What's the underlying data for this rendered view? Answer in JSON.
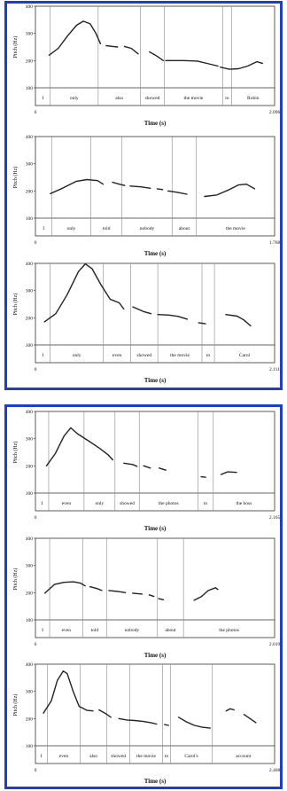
{
  "chart_data": [
    {
      "type": "line",
      "x_label": "Time (s)",
      "y_label": "Pitch (Hz)",
      "xlim": [
        0,
        2.096
      ],
      "ylim": [
        100,
        400
      ],
      "x_ticks": [
        "0",
        "2.096"
      ],
      "y_ticks": [
        "100",
        "200",
        "300",
        "400"
      ],
      "words": [
        {
          "label": "I",
          "start": 0.0,
          "end": 0.13
        },
        {
          "label": "only",
          "start": 0.13,
          "end": 0.55
        },
        {
          "label": "also",
          "start": 0.55,
          "end": 0.92
        },
        {
          "label": "showed",
          "start": 0.92,
          "end": 1.13
        },
        {
          "label": "the movie",
          "start": 1.13,
          "end": 1.64
        },
        {
          "label": "to",
          "start": 1.64,
          "end": 1.72
        },
        {
          "label": "Robin",
          "start": 1.72,
          "end": 2.096
        }
      ],
      "segments": [
        [
          [
            0.12,
            220
          ],
          [
            0.2,
            245
          ],
          [
            0.28,
            290
          ],
          [
            0.36,
            330
          ],
          [
            0.42,
            345
          ],
          [
            0.48,
            335
          ],
          [
            0.53,
            300
          ],
          [
            0.57,
            262
          ]
        ],
        [
          [
            0.62,
            255
          ],
          [
            0.68,
            252
          ],
          [
            0.72,
            250
          ]
        ],
        [
          [
            0.78,
            252
          ],
          [
            0.84,
            245
          ],
          [
            0.9,
            225
          ]
        ],
        [
          [
            1.0,
            232
          ],
          [
            1.07,
            215
          ],
          [
            1.12,
            200
          ]
        ],
        [
          [
            1.14,
            200
          ],
          [
            1.3,
            200
          ],
          [
            1.42,
            198
          ],
          [
            1.52,
            188
          ],
          [
            1.6,
            180
          ]
        ],
        [
          [
            1.62,
            176
          ],
          [
            1.7,
            168
          ],
          [
            1.78,
            170
          ],
          [
            1.86,
            180
          ],
          [
            1.94,
            196
          ],
          [
            1.99,
            190
          ]
        ]
      ]
    },
    {
      "type": "line",
      "x_label": "Time (s)",
      "y_label": "Pitch (Hz)",
      "xlim": [
        0,
        1.768
      ],
      "ylim": [
        100,
        400
      ],
      "x_ticks": [
        "0",
        "1.768"
      ],
      "y_ticks": [
        "100",
        "200",
        "300",
        "400"
      ],
      "words": [
        {
          "label": "I",
          "start": 0.0,
          "end": 0.12
        },
        {
          "label": "only",
          "start": 0.12,
          "end": 0.41
        },
        {
          "label": "told",
          "start": 0.41,
          "end": 0.64
        },
        {
          "label": "nobody",
          "start": 0.64,
          "end": 1.01
        },
        {
          "label": "about",
          "start": 1.01,
          "end": 1.19
        },
        {
          "label": "the movie",
          "start": 1.19,
          "end": 1.768
        }
      ],
      "segments": [
        [
          [
            0.11,
            190
          ],
          [
            0.2,
            210
          ],
          [
            0.3,
            235
          ],
          [
            0.38,
            242
          ],
          [
            0.46,
            238
          ],
          [
            0.5,
            225
          ]
        ],
        [
          [
            0.57,
            232
          ],
          [
            0.62,
            225
          ],
          [
            0.66,
            220
          ]
        ],
        [
          [
            0.7,
            218
          ],
          [
            0.78,
            215
          ],
          [
            0.85,
            210
          ]
        ],
        [
          [
            0.9,
            208
          ],
          [
            0.94,
            205
          ]
        ],
        [
          [
            0.98,
            200
          ],
          [
            1.05,
            195
          ],
          [
            1.12,
            188
          ]
        ],
        [
          [
            1.25,
            180
          ],
          [
            1.34,
            185
          ],
          [
            1.42,
            202
          ],
          [
            1.5,
            222
          ],
          [
            1.56,
            225
          ],
          [
            1.62,
            208
          ]
        ]
      ]
    },
    {
      "type": "line",
      "x_label": "Time (s)",
      "y_label": "Pitch (Hz)",
      "xlim": [
        0,
        2.111
      ],
      "ylim": [
        100,
        400
      ],
      "x_ticks": [
        "0",
        "2.111"
      ],
      "y_ticks": [
        "100",
        "200",
        "300",
        "400"
      ],
      "words": [
        {
          "label": "I",
          "start": 0.0,
          "end": 0.13
        },
        {
          "label": "only",
          "start": 0.13,
          "end": 0.6
        },
        {
          "label": "even",
          "start": 0.6,
          "end": 0.84
        },
        {
          "label": "showed",
          "start": 0.84,
          "end": 1.08
        },
        {
          "label": "the movie",
          "start": 1.08,
          "end": 1.47
        },
        {
          "label": "to",
          "start": 1.47,
          "end": 1.58
        },
        {
          "label": "Carol",
          "start": 1.58,
          "end": 2.111
        }
      ],
      "segments": [
        [
          [
            0.08,
            185
          ],
          [
            0.18,
            215
          ],
          [
            0.28,
            285
          ],
          [
            0.38,
            370
          ],
          [
            0.44,
            398
          ],
          [
            0.5,
            380
          ],
          [
            0.58,
            320
          ],
          [
            0.66,
            268
          ],
          [
            0.74,
            255
          ],
          [
            0.78,
            232
          ]
        ],
        [
          [
            0.86,
            240
          ],
          [
            0.96,
            222
          ],
          [
            1.02,
            215
          ]
        ],
        [
          [
            1.08,
            212
          ],
          [
            1.18,
            210
          ],
          [
            1.26,
            205
          ],
          [
            1.34,
            195
          ]
        ],
        [
          [
            1.44,
            182
          ],
          [
            1.5,
            178
          ]
        ],
        [
          [
            1.68,
            212
          ],
          [
            1.78,
            206
          ],
          [
            1.84,
            192
          ],
          [
            1.9,
            170
          ]
        ]
      ]
    },
    {
      "type": "line",
      "x_label": "Time (s)",
      "y_label": "Pitch (Hz)",
      "xlim": [
        0,
        2.165
      ],
      "ylim": [
        100,
        400
      ],
      "x_ticks": [
        "0",
        "2.165"
      ],
      "y_ticks": [
        "100",
        "200",
        "300",
        "400"
      ],
      "words": [
        {
          "label": "I",
          "start": 0.0,
          "end": 0.12
        },
        {
          "label": "even",
          "start": 0.12,
          "end": 0.44
        },
        {
          "label": "only",
          "start": 0.44,
          "end": 0.72
        },
        {
          "label": "showed",
          "start": 0.72,
          "end": 0.94
        },
        {
          "label": "the photos",
          "start": 0.94,
          "end": 1.47
        },
        {
          "label": "to",
          "start": 1.47,
          "end": 1.61
        },
        {
          "label": "the boss",
          "start": 1.61,
          "end": 2.165
        }
      ],
      "segments": [
        [
          [
            0.1,
            200
          ],
          [
            0.18,
            245
          ],
          [
            0.26,
            310
          ],
          [
            0.32,
            340
          ],
          [
            0.38,
            318
          ],
          [
            0.48,
            292
          ],
          [
            0.58,
            265
          ],
          [
            0.66,
            240
          ],
          [
            0.7,
            222
          ]
        ],
        [
          [
            0.8,
            210
          ],
          [
            0.88,
            205
          ],
          [
            0.92,
            198
          ]
        ],
        [
          [
            0.98,
            200
          ],
          [
            1.04,
            192
          ]
        ],
        [
          [
            1.12,
            192
          ],
          [
            1.18,
            184
          ]
        ],
        [
          [
            1.5,
            160
          ],
          [
            1.54,
            158
          ]
        ],
        [
          [
            1.68,
            168
          ],
          [
            1.74,
            178
          ],
          [
            1.82,
            176
          ]
        ]
      ]
    },
    {
      "type": "line",
      "x_label": "Time (s)",
      "y_label": "Pitch (Hz)",
      "xlim": [
        0,
        2.019
      ],
      "ylim": [
        100,
        400
      ],
      "x_ticks": [
        "0",
        "2.019"
      ],
      "y_ticks": [
        "100",
        "200",
        "300",
        "400"
      ],
      "words": [
        {
          "label": "I",
          "start": 0.0,
          "end": 0.12
        },
        {
          "label": "even",
          "start": 0.12,
          "end": 0.4
        },
        {
          "label": "told",
          "start": 0.4,
          "end": 0.6
        },
        {
          "label": "nobody",
          "start": 0.6,
          "end": 1.03
        },
        {
          "label": "about",
          "start": 1.03,
          "end": 1.25
        },
        {
          "label": "the photos",
          "start": 1.25,
          "end": 2.019
        }
      ],
      "segments": [
        [
          [
            0.08,
            198
          ],
          [
            0.16,
            230
          ],
          [
            0.24,
            238
          ],
          [
            0.32,
            240
          ],
          [
            0.38,
            235
          ],
          [
            0.42,
            225
          ]
        ],
        [
          [
            0.46,
            222
          ],
          [
            0.52,
            215
          ],
          [
            0.56,
            208
          ]
        ],
        [
          [
            0.62,
            208
          ],
          [
            0.7,
            204
          ],
          [
            0.76,
            200
          ]
        ],
        [
          [
            0.82,
            198
          ],
          [
            0.9,
            195
          ]
        ],
        [
          [
            0.96,
            192
          ],
          [
            1.0,
            186
          ]
        ],
        [
          [
            1.04,
            178
          ],
          [
            1.08,
            174
          ]
        ],
        [
          [
            1.34,
            172
          ],
          [
            1.4,
            185
          ],
          [
            1.46,
            208
          ],
          [
            1.52,
            218
          ],
          [
            1.54,
            212
          ]
        ]
      ]
    },
    {
      "type": "line",
      "x_label": "Time (s)",
      "y_label": "Pitch (Hz)",
      "xlim": [
        0,
        2.408
      ],
      "ylim": [
        100,
        400
      ],
      "x_ticks": [
        "0",
        "2.408"
      ],
      "y_ticks": [
        "100",
        "200",
        "300",
        "400"
      ],
      "words": [
        {
          "label": "I",
          "start": 0.0,
          "end": 0.12
        },
        {
          "label": "even",
          "start": 0.12,
          "end": 0.45
        },
        {
          "label": "also",
          "start": 0.45,
          "end": 0.72
        },
        {
          "label": "showed",
          "start": 0.72,
          "end": 0.95
        },
        {
          "label": "the movie",
          "start": 0.95,
          "end": 1.28
        },
        {
          "label": "to",
          "start": 1.28,
          "end": 1.36
        },
        {
          "label": "Carol's",
          "start": 1.36,
          "end": 1.78
        },
        {
          "label": "account",
          "start": 1.78,
          "end": 2.408
        }
      ],
      "segments": [
        [
          [
            0.08,
            220
          ],
          [
            0.16,
            265
          ],
          [
            0.22,
            340
          ],
          [
            0.28,
            375
          ],
          [
            0.32,
            365
          ],
          [
            0.38,
            300
          ],
          [
            0.44,
            245
          ],
          [
            0.52,
            230
          ],
          [
            0.58,
            228
          ]
        ],
        [
          [
            0.64,
            232
          ],
          [
            0.7,
            220
          ],
          [
            0.76,
            205
          ]
        ],
        [
          [
            0.84,
            200
          ],
          [
            0.92,
            195
          ],
          [
            1.0,
            193
          ],
          [
            1.08,
            190
          ],
          [
            1.16,
            185
          ],
          [
            1.22,
            180
          ]
        ],
        [
          [
            1.3,
            178
          ],
          [
            1.34,
            175
          ]
        ],
        [
          [
            1.44,
            205
          ],
          [
            1.52,
            188
          ],
          [
            1.6,
            175
          ],
          [
            1.68,
            168
          ],
          [
            1.76,
            165
          ]
        ],
        [
          [
            1.92,
            228
          ],
          [
            1.96,
            236
          ],
          [
            2.0,
            232
          ]
        ],
        [
          [
            2.1,
            215
          ],
          [
            2.16,
            200
          ],
          [
            2.22,
            185
          ]
        ]
      ]
    }
  ]
}
